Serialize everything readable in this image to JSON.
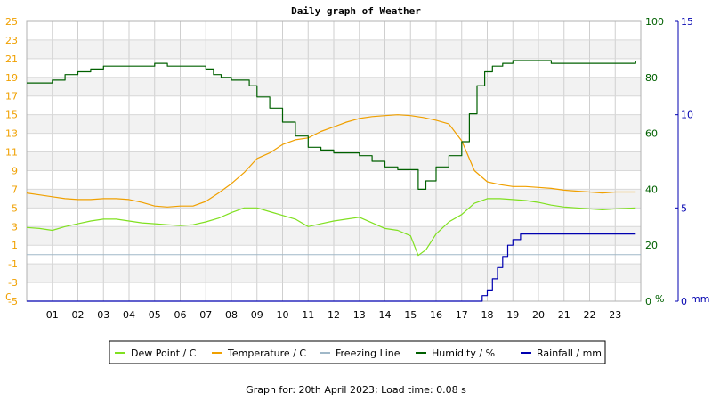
{
  "chart_data": {
    "type": "line",
    "title": "Daily graph of Weather",
    "x_tick_labels": [
      "01",
      "02",
      "03",
      "04",
      "05",
      "06",
      "07",
      "08",
      "09",
      "10",
      "11",
      "12",
      "13",
      "14",
      "15",
      "16",
      "17",
      "18",
      "19",
      "20",
      "21",
      "22",
      "23"
    ],
    "x_range": [
      0,
      24
    ],
    "axes": {
      "temperature": {
        "unit": "C",
        "range": [
          -5,
          25
        ],
        "ticks": [
          "25",
          "23",
          "21",
          "19",
          "17",
          "15",
          "13",
          "11",
          "9",
          "7",
          "5",
          "3",
          "1",
          "-1",
          "-3",
          "-5"
        ],
        "color": "#f0a000"
      },
      "humidity": {
        "unit": "%",
        "range": [
          0,
          100
        ],
        "ticks": [
          "100",
          "80",
          "60",
          "40",
          "20",
          "0"
        ],
        "color": "#006000"
      },
      "rainfall": {
        "unit": "mm",
        "range": [
          0,
          15
        ],
        "ticks": [
          "15",
          "10",
          "5",
          "0"
        ],
        "color": "#0000b0"
      }
    },
    "grid": true,
    "series": [
      {
        "name": "Dew Point / C",
        "color": "#80e020",
        "axis": "temperature",
        "x": [
          0,
          0.5,
          1,
          1.5,
          2,
          2.5,
          3,
          3.5,
          4,
          4.5,
          5,
          5.5,
          6,
          6.5,
          7,
          7.5,
          8,
          8.5,
          9,
          9.5,
          10,
          10.5,
          11,
          11.5,
          12,
          12.5,
          13,
          13.5,
          14,
          14.5,
          15,
          15.3,
          15.6,
          16,
          16.5,
          17,
          17.5,
          18,
          18.5,
          19,
          19.5,
          20,
          20.5,
          21,
          21.5,
          22,
          22.5,
          23,
          23.8
        ],
        "y": [
          2.9,
          2.8,
          2.6,
          3.0,
          3.3,
          3.6,
          3.8,
          3.8,
          3.6,
          3.4,
          3.3,
          3.2,
          3.1,
          3.2,
          3.5,
          3.9,
          4.5,
          5.0,
          5.0,
          4.6,
          4.2,
          3.8,
          3.0,
          3.3,
          3.6,
          3.8,
          4.0,
          3.4,
          2.8,
          2.6,
          2.0,
          -0.1,
          0.5,
          2.2,
          3.5,
          4.3,
          5.5,
          6.0,
          6.0,
          5.9,
          5.8,
          5.6,
          5.3,
          5.1,
          5.0,
          4.9,
          4.8,
          4.9,
          5.0
        ]
      },
      {
        "name": "Temperature / C",
        "color": "#f0a000",
        "axis": "temperature",
        "x": [
          0,
          0.5,
          1,
          1.5,
          2,
          2.5,
          3,
          3.5,
          4,
          4.5,
          5,
          5.5,
          6,
          6.5,
          7,
          7.5,
          8,
          8.5,
          9,
          9.5,
          10,
          10.5,
          11,
          11.5,
          12,
          12.5,
          13,
          13.5,
          14,
          14.5,
          15,
          15.5,
          16,
          16.5,
          17,
          17.5,
          18,
          18.5,
          19,
          19.5,
          20,
          20.5,
          21,
          21.5,
          22,
          22.5,
          23,
          23.8
        ],
        "y": [
          6.6,
          6.4,
          6.2,
          6.0,
          5.9,
          5.9,
          6.0,
          6.0,
          5.9,
          5.6,
          5.2,
          5.1,
          5.2,
          5.2,
          5.7,
          6.6,
          7.6,
          8.8,
          10.3,
          10.9,
          11.8,
          12.3,
          12.5,
          13.2,
          13.7,
          14.2,
          14.6,
          14.8,
          14.9,
          15.0,
          14.9,
          14.7,
          14.4,
          14.0,
          12.2,
          9.0,
          7.8,
          7.5,
          7.3,
          7.3,
          7.2,
          7.1,
          6.9,
          6.8,
          6.7,
          6.6,
          6.7,
          6.7
        ]
      },
      {
        "name": "Freezing Line",
        "color": "#a0b8c8",
        "axis": "temperature",
        "x": [
          0,
          24
        ],
        "y": [
          0,
          0
        ]
      },
      {
        "name": "Humidity / %",
        "color": "#006000",
        "axis": "humidity",
        "x": [
          0,
          0.7,
          1,
          1.5,
          2,
          2.5,
          3,
          3.5,
          4,
          4.5,
          5,
          5.5,
          6,
          6.5,
          7,
          7.3,
          7.6,
          8,
          8.4,
          8.7,
          9,
          9.5,
          10,
          10.5,
          11,
          11.5,
          12,
          12.5,
          13,
          13.5,
          14,
          14.5,
          15,
          15.3,
          15.6,
          16,
          16.5,
          17,
          17.3,
          17.6,
          17.9,
          18.2,
          18.6,
          19,
          19.3,
          19.6,
          20,
          20.5,
          21,
          21.5,
          22,
          22.5,
          23,
          23.8
        ],
        "y": [
          78,
          78,
          79,
          81,
          82,
          83,
          84,
          84,
          84,
          84,
          85,
          84,
          84,
          84,
          83,
          81,
          80,
          79,
          79,
          77,
          73,
          69,
          64,
          59,
          55,
          54,
          53,
          53,
          52,
          50,
          48,
          47,
          47,
          40,
          43,
          48,
          52,
          57,
          67,
          77,
          82,
          84,
          85,
          86,
          86,
          86,
          86,
          85,
          85,
          85,
          85,
          85,
          85,
          86
        ]
      },
      {
        "name": "Rainfall / mm",
        "color": "#0000b0",
        "axis": "rainfall",
        "x": [
          0,
          17.6,
          17.8,
          18.0,
          18.2,
          18.4,
          18.6,
          18.8,
          19.0,
          19.3,
          20,
          21,
          22,
          23,
          23.8
        ],
        "y": [
          0,
          0,
          0.3,
          0.6,
          1.2,
          1.8,
          2.4,
          3.0,
          3.3,
          3.6,
          3.6,
          3.6,
          3.6,
          3.6,
          3.6
        ]
      }
    ]
  },
  "legend": {
    "items": [
      {
        "label": "Dew Point / C",
        "color": "#80e020"
      },
      {
        "label": "Temperature / C",
        "color": "#f0a000"
      },
      {
        "label": "Freezing Line",
        "color": "#a0b8c8"
      },
      {
        "label": "Humidity / %",
        "color": "#006000"
      },
      {
        "label": "Rainfall / mm",
        "color": "#0000b0"
      }
    ]
  },
  "footer": {
    "text": "Graph for: 20th April 2023; Load time: 0.08 s"
  }
}
